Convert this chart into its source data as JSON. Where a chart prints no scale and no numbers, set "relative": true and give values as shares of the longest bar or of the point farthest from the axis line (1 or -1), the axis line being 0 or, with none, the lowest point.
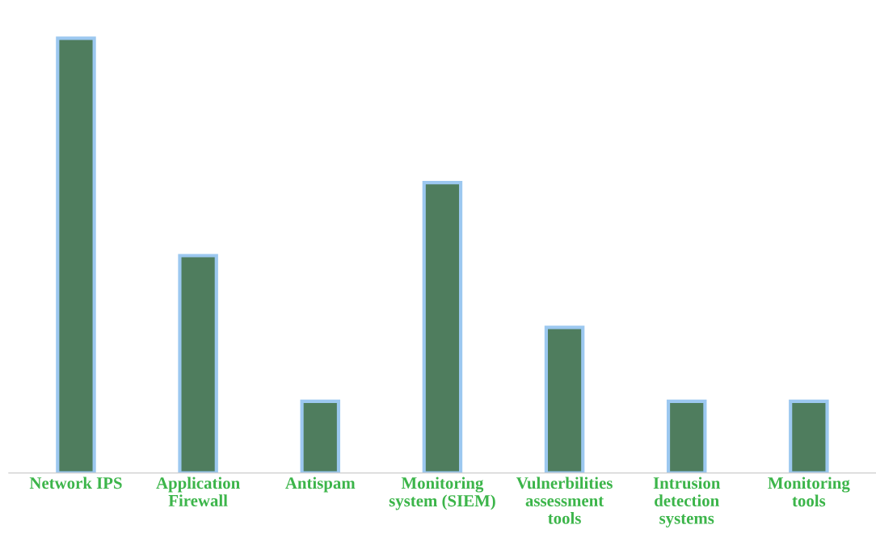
{
  "chart_data": {
    "type": "bar",
    "relative": true,
    "categories": [
      "Network IPS",
      "Application Firewall",
      "Antispam",
      "Monitoring system (SIEM)",
      "Vulnerbilities assessment tools",
      "Intrusion detection systems",
      "Monitoring tools"
    ],
    "values": [
      1,
      0.5,
      0.165,
      0.668,
      0.335,
      0.165,
      0.165
    ],
    "color": "#4f7d5e"
  }
}
